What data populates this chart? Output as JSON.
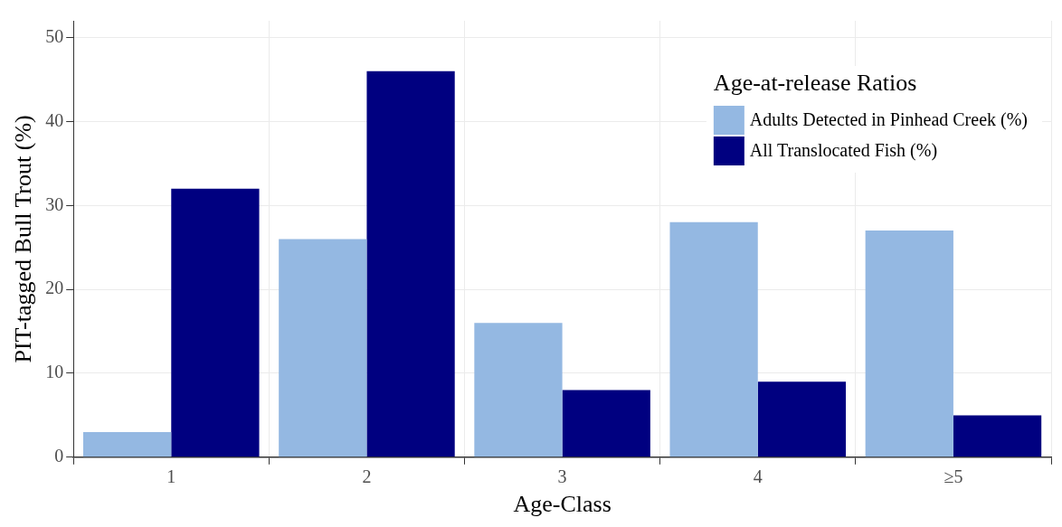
{
  "chart_data": {
    "type": "bar",
    "xlabel": "Age-Class",
    "ylabel": "PIT-tagged Bull Trout (%)",
    "legend_title": "Age-at-release Ratios",
    "categories": [
      "1",
      "2",
      "3",
      "4",
      "≥5"
    ],
    "series": [
      {
        "name": "Adults Detected in Pinhead Creek (%)",
        "color": "#94b8e2",
        "values": [
          3,
          26,
          16,
          28,
          27
        ]
      },
      {
        "name": "All Translocated Fish (%)",
        "color": "#000080",
        "values": [
          32,
          46,
          8,
          9,
          5
        ]
      }
    ],
    "ylim": [
      0,
      52
    ],
    "yticks": [
      0,
      10,
      20,
      30,
      40,
      50
    ],
    "grid": true,
    "legend": "top right"
  }
}
